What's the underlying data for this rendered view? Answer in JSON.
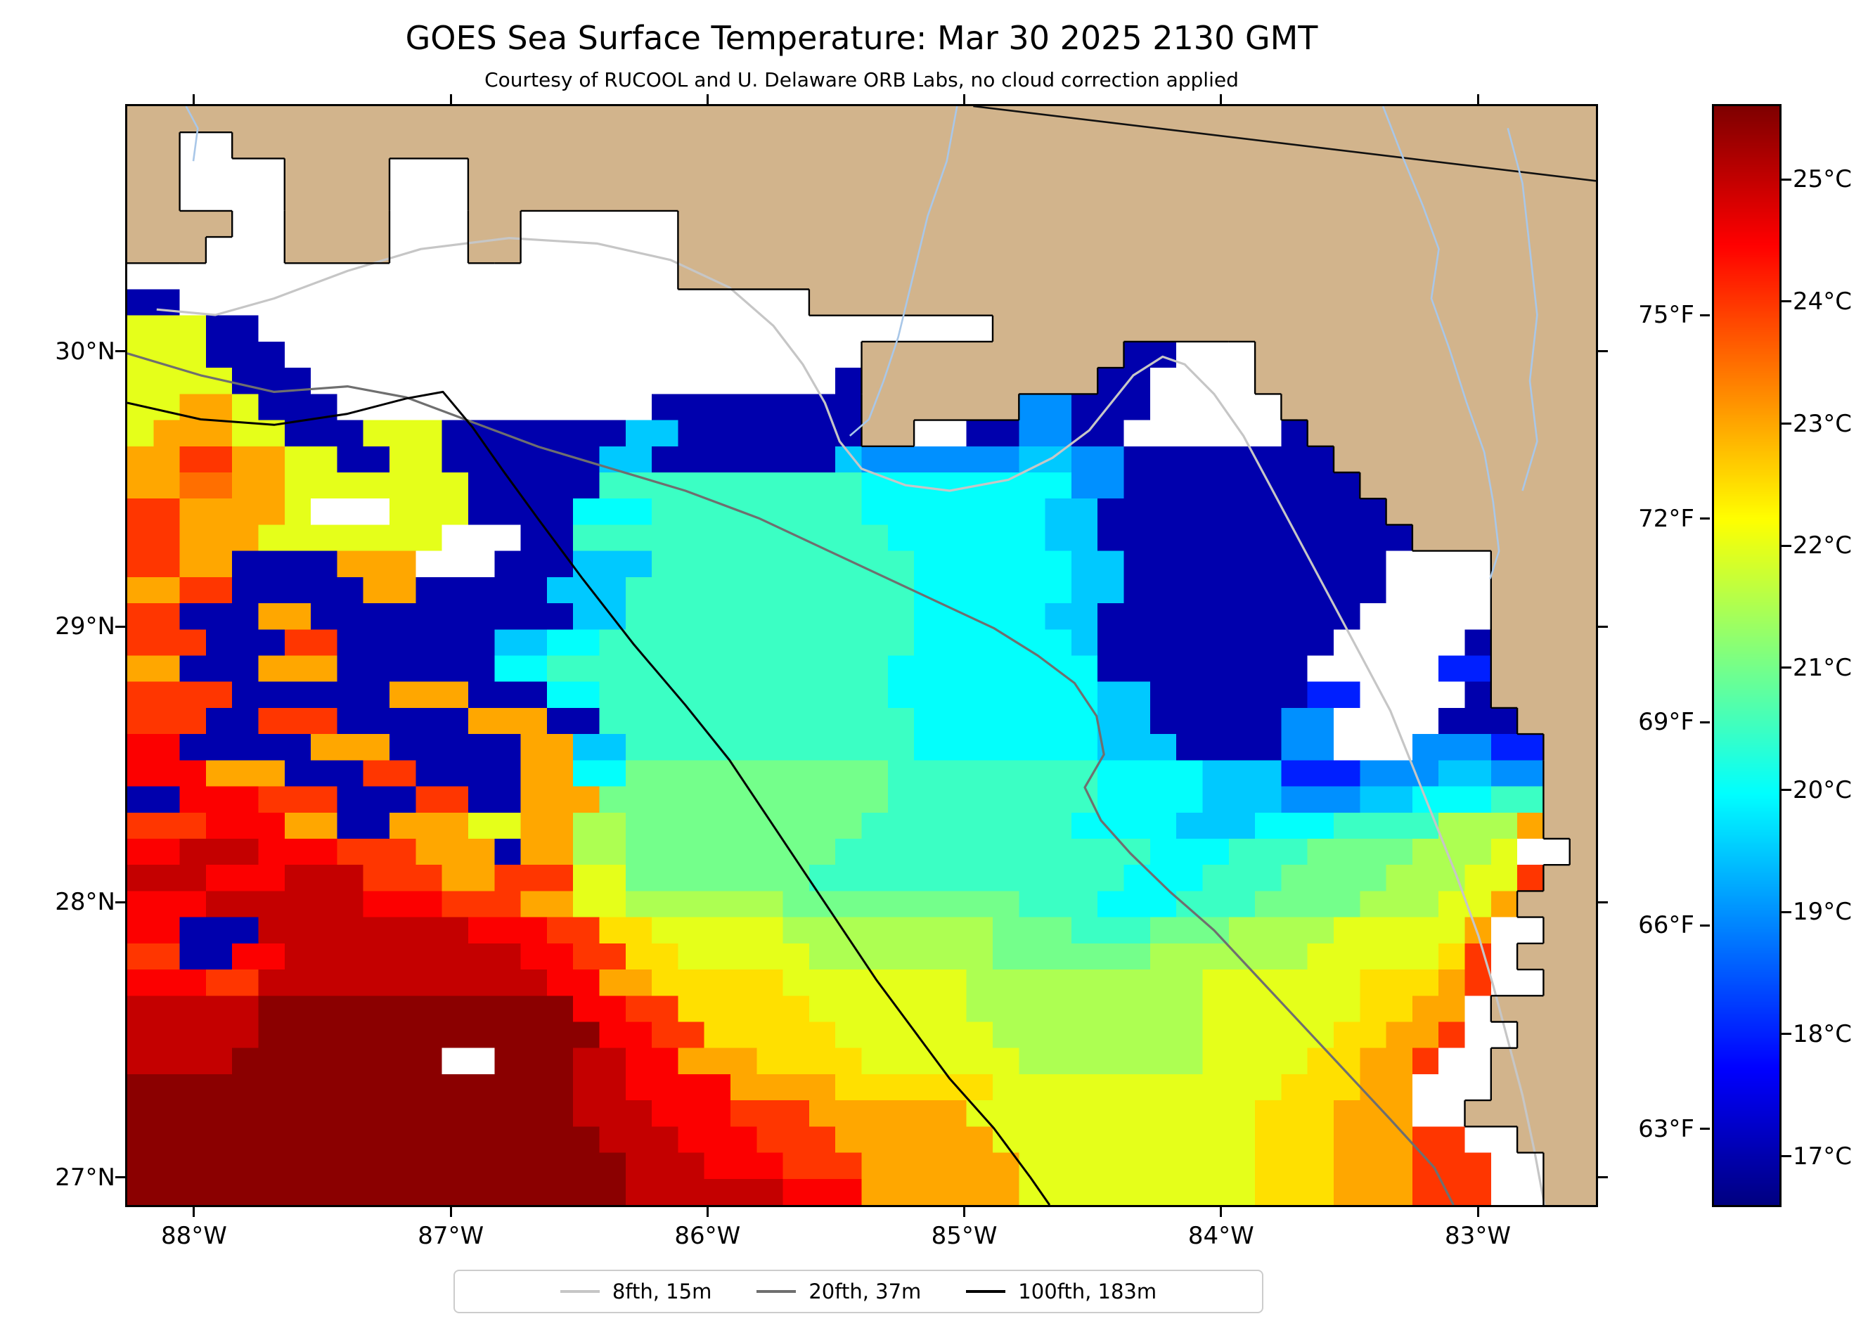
{
  "title": "GOES Sea Surface Temperature: Mar 30 2025 2130 GMT",
  "subtitle": "Courtesy of RUCOOL and U. Delaware ORB Labs, no cloud correction applied",
  "colors": {
    "land": "#d2b48c",
    "cloud": "#ffffff",
    "river": "#a9c7e8",
    "coastline": "#000000"
  },
  "legend": [
    {
      "label": "8fth, 15m",
      "color": "#c6c6c6"
    },
    {
      "label": "20fth, 37m",
      "color": "#6f6f6f"
    },
    {
      "label": "100fth, 183m",
      "color": "#000000"
    }
  ],
  "axes": {
    "x_ticks": [
      {
        "label": "88°W",
        "lon": 88
      },
      {
        "label": "87°W",
        "lon": 87
      },
      {
        "label": "86°W",
        "lon": 86
      },
      {
        "label": "85°W",
        "lon": 85
      },
      {
        "label": "84°W",
        "lon": 84
      },
      {
        "label": "83°W",
        "lon": 83
      }
    ],
    "y_ticks": [
      {
        "label": "30°N",
        "lat": 30
      },
      {
        "label": "29°N",
        "lat": 29
      },
      {
        "label": "28°N",
        "lat": 28
      },
      {
        "label": "27°N",
        "lat": 27
      }
    ]
  },
  "chart_data": {
    "type": "heatmap",
    "title": "GOES Sea Surface Temperature: Mar 30 2025 2130 GMT",
    "subtitle": "Courtesy of RUCOOL and U. Delaware ORB Labs, no cloud correction applied",
    "units": "°C (right colorbar scale), °F (left colorbar scale)",
    "lon_range": [
      88.26,
      82.54
    ],
    "lat_range": [
      30.89,
      26.9
    ],
    "colorbar": {
      "colormap": "jet",
      "vmin": 16.6,
      "vmax": 25.6,
      "ticks_c": [
        {
          "label": "25°C",
          "value": 25
        },
        {
          "label": "24°C",
          "value": 24
        },
        {
          "label": "23°C",
          "value": 23
        },
        {
          "label": "22°C",
          "value": 22
        },
        {
          "label": "21°C",
          "value": 21
        },
        {
          "label": "20°C",
          "value": 20
        },
        {
          "label": "19°C",
          "value": 19
        },
        {
          "label": "18°C",
          "value": 18
        },
        {
          "label": "17°C",
          "value": 17
        }
      ],
      "ticks_f": [
        {
          "label": "75°F",
          "value": 75
        },
        {
          "label": "72°F",
          "value": 72
        },
        {
          "label": "69°F",
          "value": 69
        },
        {
          "label": "66°F",
          "value": 66
        },
        {
          "label": "63°F",
          "value": 63
        }
      ]
    },
    "grid": {
      "cols": 56,
      "rows": 42,
      "cell_legend": {
        "L": "land",
        "W": "cloud / no data"
      },
      "temp_levels": {
        "a": 17.0,
        "b": 17.5,
        "c": 18.0,
        "d": 18.5,
        "e": 19.0,
        "f": 19.5,
        "g": 20.0,
        "h": 20.5,
        "i": 21.0,
        "j": 21.5,
        "k": 22.0,
        "l": 22.5,
        "m": 23.0,
        "n": 23.5,
        "o": 24.0,
        "p": 24.5,
        "q": 25.0,
        "r": 25.5
      },
      "rows_data": [
        "LLLLLLLLLLLLLLLLLLLLLLLLLLLLLLLLLLLLLLLLLLLLLLLLLLLLLLLL",
        "LLWWLLLLLLLLLLLLLLLLLLLLLLLLLLLLLLLLLLLLLLLLLLLLLLLLLLLL",
        "LLWWWWLLLLWWWLLLLLLLLLLLLLLLLLLLLLLLLLLLLLLLLLLLLLLLLLL",
        "LLWWWWLLLLWWWLLLLLLLLLLLLLLLLLLLLLLLLLLLLLLLLLLLLLLLLLL",
        "LLLLWWLLLLWWWLLWWWWWWLLLLLLLLLLLLLLLLLLLLLLLLLLLLLLLLLL",
        "LLLWWWLLLLWWWLLWWWWWWLLLLLLLLLLLLLLLLLLLLLLLLLLLLLLLLLL",
        "WWWWWWWWWWWWWWWWWWWWWLLLLLLLLLLLLLLLLLLLLLLLLLLLLLLLLLL",
        "aaWWWWWWWWWWWWWWWWWWWWWWWWLLLLLLLLLLLLLLLLLLLLLLLLLLLLL",
        "kkkaaWWWWWWWWWWWWWWWWWWWWWWWWWWWWLLLLLLLLLLLLLLLLLLLLLL",
        "kkkaaaWWWWWWWWWWWWWWWWWWWWWWLLLLLLLLLLaaWWWLLLLLLLLLLLLL",
        "kkkkaaaWWWWWWWWWWWWWWWWWWWWaLLLLLLLLLaaWWWWLLLLLLLLLLLLL",
        "kkmmkaaaWWWWWWWWWWWWaaaaaaaaLLLLLLeeaaaWWWWWLLLLLLLLLLLL",
        "kmmmkkaaakkkaaaaaaaffaaaaaaaLLWWaaeeaaWWWWWWaLLLLLLLLLLL",
        "mmoommkkaakkaaaaaaffaaaaaaafeeeeeeffeeaaaaaaaaLLLLLLLLLL",
        "mmnnmmkkkkkkkaaaaahhhhhhhhhhggggggggeeaaaaaaaaaLLLLLLLLL",
        "oommmmkWWWkkkaaaaggghhhhhhhhgggggggffaaaaaaaaaaaLLLLLLLL",
        "oommmkkkkkkkWWWaahhhhhhhhhhhhggggggffaaaaaaaaaaaaLLLLLLL",
        "oommaaaammmWWWaaafffhhhhhhhhhhggggggffaaaaaaaaaaWWWWLLLL",
        "mmooaaaaammaaaaafffhhhhhhhhhhhggggggffaaaaaaaaaaWWWWLLLL",
        "ooaaammaaaaaaaaaaffhhhhhhhhhhhgggggffaaaaaaaaaaWWWWWLLLL",
        "oooaaaooaaaaaaffgghhhhhhhhhhhhggggggfaaaaaaaaaWWWWWaLLLL",
        "mmaaammmaaaaaagghhhhhhhhhhhhhggggggggaaaaaaaaWWWWWccLLLL",
        "ooooaaaaaammmaaagghhhhhhhhhhhggggggggffaaaaaaccWWWWaLLLL",
        "oooaaoooaaaaammmaahhhhhhhhhhhhgggggggffaaaaaeeWWWWaaaLLL",
        "ppaaaaammmaaaaammffhhhhhhhhhhhgggggggfffaaaaeeWWWeeeccLL",
        "pppmmmaaaooaaaammggiiiiiiiiiihhhhhhhhggggfffccceeeffeeLL",
        "aapppoooaaaooaammmiiiiiiiiiiihhhhhhhhggggfffeeeffggghhLL",
        "ooopppmmaammmkkmmjjiiiiiiiiihhhhhhhhggggfffggghhhhjjjmLL",
        "ppqqqpppooommmammjjiiiiiiiihhhhhhhhhhhhggghhhiiiijjjkWWL",
        "qqqpppqqqooommooo kkiiiiiiihhhhhhhhhhhhggghhhiiiijjjkkoLL",
        "pppqqqqqqpppooommkkjjjjjjiiiiiiiiihhhggghhhiiiijjjkkmLLL",
        "ppaaaqqqqqqqqpppoollkkkkkjjjjjjjjiiihhhiiijjjjkkkkkmWWLL",
        "ooaappqqqqqqqqqppoollkkkkkjjjjjjjiiiiiijjjjjjkkkkkloWLLL",
        "pppooqqqqqqqqqqqppmmlllllkkkkkkkjjjjjjjjjkkkkkklllmoWWLL",
        "qqqqqrrrrrrrrrrrrppoolllllkkkkkkjjjjjjjjjkkkkkkllmmWLLLL",
        "qqqqqrrrrrrrrrrrrrppoolllllkkkkkkjjjjjjjjkkkkkllmmoWWLLL",
        "qqqqrrrrrrrrWWrrrqqppmmmllllkkkkkkjjjjjjjkkkkllmmoWWLLLL",
        "rrrrrrrrrrrrrrrrrqqppppmmmmllllllkkkkkkkkkkklllmmWWWLLLL",
        "rrrrrrrrrrrrrrrrrqqqpppooommmmmmkkkkkkkkkkklllmmmWWLLLLL",
        "rrrrrrrrrrrrrrrrrrqqqpppooommmmmmkkkkkkkkkklllmmmooWWLLL",
        "rrrrrrrrrrrrrrrrrrrqqqpppooommmmmmkkkkkkkkklllmmmoooWWLL",
        "rrrrrrrrrrrrrrrrrrrqqqqqqpppmmmmmmkkkkkkkkklllmmmoooWWLL"
      ]
    },
    "contours": [
      {
        "name": "8fth, 15m",
        "depth_m": 15,
        "color": "#c6c6c6",
        "width": 3.2,
        "points": [
          [
            0.02,
            0.185
          ],
          [
            0.06,
            0.19
          ],
          [
            0.1,
            0.175
          ],
          [
            0.15,
            0.15
          ],
          [
            0.2,
            0.13
          ],
          [
            0.26,
            0.12
          ],
          [
            0.32,
            0.125
          ],
          [
            0.37,
            0.14
          ],
          [
            0.41,
            0.165
          ],
          [
            0.44,
            0.2
          ],
          [
            0.46,
            0.235
          ],
          [
            0.475,
            0.27
          ],
          [
            0.485,
            0.305
          ],
          [
            0.5,
            0.33
          ],
          [
            0.53,
            0.345
          ],
          [
            0.56,
            0.35
          ],
          [
            0.6,
            0.34
          ],
          [
            0.63,
            0.32
          ],
          [
            0.655,
            0.295
          ],
          [
            0.67,
            0.27
          ],
          [
            0.685,
            0.245
          ],
          [
            0.705,
            0.228
          ],
          [
            0.72,
            0.235
          ],
          [
            0.74,
            0.262
          ],
          [
            0.76,
            0.3
          ],
          [
            0.78,
            0.35
          ],
          [
            0.8,
            0.4
          ],
          [
            0.82,
            0.45
          ],
          [
            0.84,
            0.5
          ],
          [
            0.86,
            0.55
          ],
          [
            0.875,
            0.6
          ],
          [
            0.89,
            0.65
          ],
          [
            0.905,
            0.7
          ],
          [
            0.92,
            0.755
          ],
          [
            0.93,
            0.8
          ],
          [
            0.94,
            0.85
          ],
          [
            0.95,
            0.9
          ],
          [
            0.958,
            0.95
          ],
          [
            0.965,
            1.0
          ]
        ]
      },
      {
        "name": "20fth, 37m",
        "depth_m": 37,
        "color": "#6f6f6f",
        "width": 3.2,
        "points": [
          [
            0.0,
            0.225
          ],
          [
            0.05,
            0.245
          ],
          [
            0.1,
            0.26
          ],
          [
            0.15,
            0.255
          ],
          [
            0.19,
            0.265
          ],
          [
            0.23,
            0.285
          ],
          [
            0.28,
            0.31
          ],
          [
            0.33,
            0.33
          ],
          [
            0.38,
            0.35
          ],
          [
            0.43,
            0.375
          ],
          [
            0.47,
            0.4
          ],
          [
            0.51,
            0.425
          ],
          [
            0.55,
            0.45
          ],
          [
            0.59,
            0.475
          ],
          [
            0.62,
            0.5
          ],
          [
            0.645,
            0.525
          ],
          [
            0.66,
            0.555
          ],
          [
            0.665,
            0.59
          ],
          [
            0.652,
            0.62
          ],
          [
            0.663,
            0.65
          ],
          [
            0.683,
            0.68
          ],
          [
            0.71,
            0.715
          ],
          [
            0.74,
            0.75
          ],
          [
            0.77,
            0.793
          ],
          [
            0.8,
            0.836
          ],
          [
            0.83,
            0.879
          ],
          [
            0.86,
            0.922
          ],
          [
            0.89,
            0.966
          ],
          [
            0.903,
            1.0
          ]
        ]
      },
      {
        "name": "100fth, 183m",
        "depth_m": 183,
        "color": "#000000",
        "width": 3.0,
        "points": [
          [
            0.0,
            0.27
          ],
          [
            0.05,
            0.285
          ],
          [
            0.1,
            0.29
          ],
          [
            0.15,
            0.28
          ],
          [
            0.19,
            0.266
          ],
          [
            0.215,
            0.26
          ],
          [
            0.235,
            0.292
          ],
          [
            0.256,
            0.332
          ],
          [
            0.28,
            0.376
          ],
          [
            0.31,
            0.43
          ],
          [
            0.345,
            0.49
          ],
          [
            0.38,
            0.545
          ],
          [
            0.41,
            0.595
          ],
          [
            0.435,
            0.645
          ],
          [
            0.46,
            0.695
          ],
          [
            0.485,
            0.745
          ],
          [
            0.51,
            0.795
          ],
          [
            0.535,
            0.84
          ],
          [
            0.56,
            0.885
          ],
          [
            0.59,
            0.93
          ],
          [
            0.615,
            0.975
          ],
          [
            0.628,
            1.0
          ]
        ]
      }
    ],
    "state_boundary": [
      [
        0.576,
        0.0
      ],
      [
        1.0,
        0.068
      ]
    ],
    "rivers": [
      [
        [
          0.565,
          0.0
        ],
        [
          0.558,
          0.05
        ],
        [
          0.545,
          0.1
        ],
        [
          0.535,
          0.155
        ],
        [
          0.525,
          0.21
        ],
        [
          0.515,
          0.25
        ],
        [
          0.505,
          0.285
        ],
        [
          0.492,
          0.3
        ]
      ],
      [
        [
          0.855,
          0.0
        ],
        [
          0.868,
          0.045
        ],
        [
          0.882,
          0.09
        ],
        [
          0.893,
          0.13
        ],
        [
          0.888,
          0.175
        ],
        [
          0.9,
          0.22
        ],
        [
          0.912,
          0.27
        ],
        [
          0.924,
          0.315
        ],
        [
          0.93,
          0.36
        ],
        [
          0.934,
          0.405
        ],
        [
          0.928,
          0.43
        ]
      ],
      [
        [
          0.94,
          0.02
        ],
        [
          0.95,
          0.07
        ],
        [
          0.955,
          0.13
        ],
        [
          0.96,
          0.19
        ],
        [
          0.955,
          0.25
        ],
        [
          0.96,
          0.305
        ],
        [
          0.95,
          0.35
        ]
      ],
      [
        [
          0.04,
          0.0
        ],
        [
          0.048,
          0.02
        ],
        [
          0.045,
          0.05
        ]
      ]
    ]
  }
}
